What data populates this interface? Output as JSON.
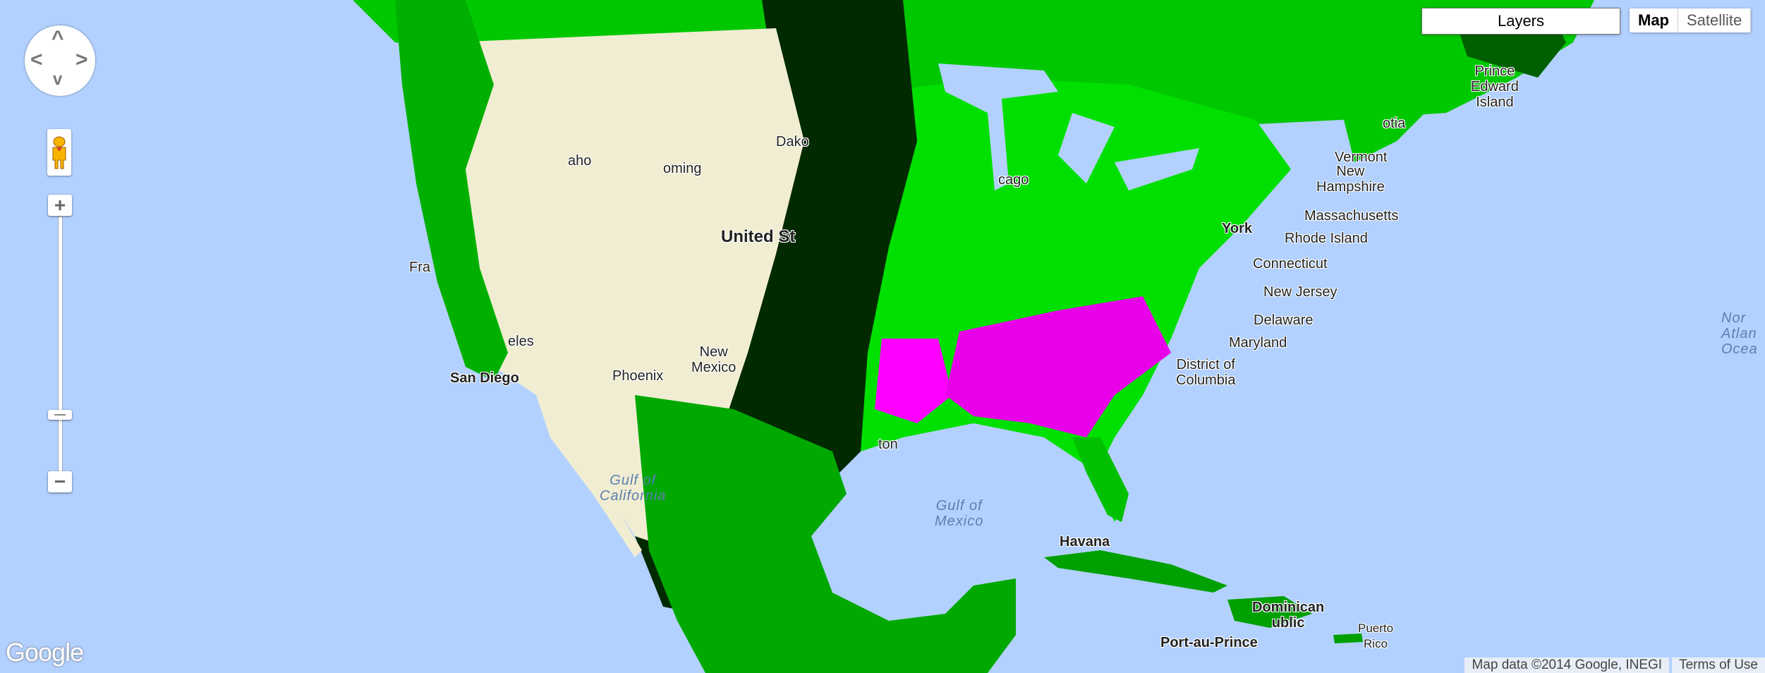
{
  "map": {
    "colors": {
      "water": "#b3d1ff",
      "desert": "#f1edd2",
      "forest_dark": "#003300",
      "forest": "#00d000",
      "forest_bright": "#00ff00",
      "class_red": "#ff0000",
      "class_magenta": "#ff00ff",
      "class_blue": "#0000ff",
      "black": "#000000"
    },
    "labels": {
      "prince_edward_island": "Prince\nEdward\nIsland",
      "vermont": "Vermont",
      "new_hampshire": "New\nHampshire",
      "massachusetts": "Massachusetts",
      "rhode_island": "Rhode Island",
      "connecticut": "Connecticut",
      "new_jersey": "New Jersey",
      "delaware": "Delaware",
      "maryland": "Maryland",
      "district_of_columbia": "District of\nColumbia",
      "new_york": "York",
      "north_atlantic": "Nor\nAtlan\nOcea",
      "gulf_of_mexico": "Gulf of\nMexico",
      "havana": "Havana",
      "dominican_republic": "Dominican\nublic",
      "port_au_prince": "Port-au-Prince",
      "puerto_rico": "Puerto\nRico",
      "san_diego": "San Diego",
      "gulf_of_california": "Gulf of\nCalifornia",
      "united_states": "United St",
      "new_mexico": "New\nMexico",
      "phoenix": "Phoenix",
      "idaho": "aho",
      "wyoming": "oming",
      "north_dakota": "Dako",
      "chicago": "cago",
      "houston": "ton",
      "nova_scotia": "otia",
      "san_francisco": "Fra",
      "los_angeles": "eles"
    }
  },
  "controls": {
    "layers_label": "Layers",
    "map_type": {
      "map": "Map",
      "satellite": "Satellite",
      "selected": "Map"
    },
    "pan_icons": {
      "up": "^",
      "down": "v",
      "left": "<",
      "right": ">"
    },
    "zoom_in": "+",
    "zoom_out": "−",
    "zoom_level_fraction": 0.78
  },
  "attribution": {
    "map_data": "Map data ©2014 Google, INEGI",
    "terms": "Terms of Use"
  },
  "logo": "Google"
}
